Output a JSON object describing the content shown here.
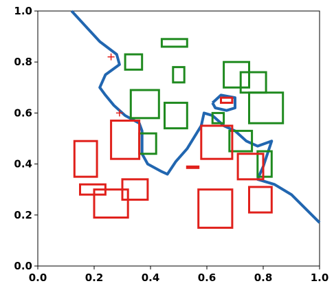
{
  "chart_data": {
    "type": "scatter",
    "title": "",
    "xlabel": "",
    "ylabel": "",
    "xlim": [
      0,
      1
    ],
    "ylim": [
      0,
      1
    ],
    "grid": false,
    "x_ticks": [
      "0.0",
      "0.2",
      "0.4",
      "0.6",
      "0.8",
      "1.0"
    ],
    "y_ticks": [
      "0.0",
      "0.2",
      "0.4",
      "0.6",
      "0.8",
      "1.0"
    ],
    "colors": {
      "red": "#e0201b",
      "green": "#1f8a1f",
      "boundary": "#2166b0"
    },
    "boundary": [
      [
        0.12,
        1.0
      ],
      [
        0.17,
        0.94
      ],
      [
        0.22,
        0.88
      ],
      [
        0.28,
        0.83
      ],
      [
        0.29,
        0.79
      ],
      [
        0.24,
        0.75
      ],
      [
        0.22,
        0.7
      ],
      [
        0.24,
        0.67
      ],
      [
        0.27,
        0.63
      ],
      [
        0.31,
        0.59
      ],
      [
        0.36,
        0.56
      ],
      [
        0.37,
        0.53
      ],
      [
        0.37,
        0.44
      ],
      [
        0.39,
        0.4
      ],
      [
        0.44,
        0.37
      ],
      [
        0.46,
        0.36
      ],
      [
        0.49,
        0.41
      ],
      [
        0.53,
        0.46
      ],
      [
        0.58,
        0.55
      ],
      [
        0.59,
        0.6
      ],
      [
        0.62,
        0.59
      ],
      [
        0.66,
        0.55
      ],
      [
        0.7,
        0.53
      ],
      [
        0.74,
        0.49
      ],
      [
        0.76,
        0.48
      ],
      [
        0.78,
        0.47
      ],
      [
        0.83,
        0.49
      ],
      [
        0.8,
        0.39
      ],
      [
        0.78,
        0.34
      ],
      [
        0.84,
        0.32
      ],
      [
        0.9,
        0.28
      ],
      [
        1.0,
        0.17
      ]
    ],
    "boundary_loop": [
      [
        0.62,
        0.64
      ],
      [
        0.65,
        0.67
      ],
      [
        0.7,
        0.66
      ],
      [
        0.7,
        0.62
      ],
      [
        0.67,
        0.61
      ],
      [
        0.63,
        0.62
      ],
      [
        0.62,
        0.64
      ]
    ],
    "red_boxes": [
      [
        0.13,
        0.35,
        0.21,
        0.49
      ],
      [
        0.26,
        0.42,
        0.36,
        0.57
      ],
      [
        0.15,
        0.28,
        0.24,
        0.32
      ],
      [
        0.2,
        0.19,
        0.32,
        0.3
      ],
      [
        0.3,
        0.26,
        0.39,
        0.34
      ],
      [
        0.58,
        0.42,
        0.69,
        0.55
      ],
      [
        0.71,
        0.34,
        0.8,
        0.44
      ],
      [
        0.57,
        0.15,
        0.69,
        0.3
      ],
      [
        0.75,
        0.21,
        0.83,
        0.31
      ],
      [
        0.65,
        0.64,
        0.69,
        0.66
      ],
      [
        0.53,
        0.385,
        0.57,
        0.39
      ]
    ],
    "green_boxes": [
      [
        0.31,
        0.77,
        0.37,
        0.83
      ],
      [
        0.44,
        0.86,
        0.53,
        0.89
      ],
      [
        0.48,
        0.72,
        0.52,
        0.78
      ],
      [
        0.33,
        0.58,
        0.43,
        0.69
      ],
      [
        0.36,
        0.44,
        0.42,
        0.52
      ],
      [
        0.45,
        0.54,
        0.53,
        0.64
      ],
      [
        0.66,
        0.7,
        0.75,
        0.8
      ],
      [
        0.72,
        0.68,
        0.81,
        0.76
      ],
      [
        0.75,
        0.56,
        0.87,
        0.68
      ],
      [
        0.62,
        0.56,
        0.66,
        0.6
      ],
      [
        0.68,
        0.45,
        0.76,
        0.53
      ],
      [
        0.78,
        0.35,
        0.83,
        0.45
      ]
    ],
    "red_plus_markers": [
      [
        0.26,
        0.82
      ],
      [
        0.29,
        0.6
      ]
    ]
  }
}
